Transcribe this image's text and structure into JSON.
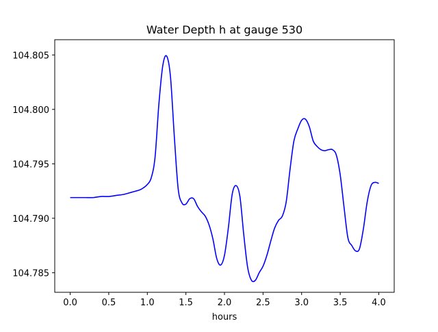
{
  "chart_data": {
    "type": "line",
    "title": "Water Depth h at gauge 530",
    "xlabel": "hours",
    "ylabel": "",
    "xlim": [
      -0.2,
      4.2
    ],
    "ylim": [
      104.7832,
      104.8064
    ],
    "grid": false,
    "xticks": [
      0.0,
      0.5,
      1.0,
      1.5,
      2.0,
      2.5,
      3.0,
      3.5,
      4.0
    ],
    "xtick_labels": [
      "0.0",
      "0.5",
      "1.0",
      "1.5",
      "2.0",
      "2.5",
      "3.0",
      "3.5",
      "4.0"
    ],
    "yticks": [
      104.785,
      104.79,
      104.795,
      104.8,
      104.805
    ],
    "ytick_labels": [
      "104.785",
      "104.790",
      "104.795",
      "104.800",
      "104.805"
    ],
    "series": [
      {
        "color": "#0000ff",
        "points": [
          [
            0.0,
            104.7919
          ],
          [
            0.1,
            104.7919
          ],
          [
            0.2,
            104.7919
          ],
          [
            0.3,
            104.7919
          ],
          [
            0.4,
            104.792
          ],
          [
            0.5,
            104.792
          ],
          [
            0.6,
            104.7921
          ],
          [
            0.7,
            104.7922
          ],
          [
            0.8,
            104.7924
          ],
          [
            0.9,
            104.7926
          ],
          [
            0.95,
            104.7928
          ],
          [
            1.0,
            104.7931
          ],
          [
            1.05,
            104.7937
          ],
          [
            1.1,
            104.7956
          ],
          [
            1.15,
            104.8005
          ],
          [
            1.2,
            104.804
          ],
          [
            1.25,
            104.8049
          ],
          [
            1.3,
            104.803
          ],
          [
            1.35,
            104.7975
          ],
          [
            1.4,
            104.7927
          ],
          [
            1.45,
            104.7914
          ],
          [
            1.5,
            104.7913
          ],
          [
            1.55,
            104.7918
          ],
          [
            1.6,
            104.7918
          ],
          [
            1.65,
            104.7911
          ],
          [
            1.7,
            104.7906
          ],
          [
            1.75,
            104.7902
          ],
          [
            1.8,
            104.7894
          ],
          [
            1.85,
            104.7881
          ],
          [
            1.9,
            104.7863
          ],
          [
            1.95,
            104.7857
          ],
          [
            2.0,
            104.7866
          ],
          [
            2.05,
            104.7891
          ],
          [
            2.1,
            104.7922
          ],
          [
            2.15,
            104.793
          ],
          [
            2.2,
            104.792
          ],
          [
            2.25,
            104.7885
          ],
          [
            2.3,
            104.7855
          ],
          [
            2.35,
            104.7843
          ],
          [
            2.4,
            104.7843
          ],
          [
            2.45,
            104.785
          ],
          [
            2.5,
            104.7856
          ],
          [
            2.55,
            104.7866
          ],
          [
            2.6,
            104.7879
          ],
          [
            2.65,
            104.7891
          ],
          [
            2.7,
            104.7898
          ],
          [
            2.75,
            104.7902
          ],
          [
            2.8,
            104.7915
          ],
          [
            2.85,
            104.7945
          ],
          [
            2.9,
            104.7971
          ],
          [
            2.95,
            104.7982
          ],
          [
            3.0,
            104.799
          ],
          [
            3.05,
            104.7991
          ],
          [
            3.1,
            104.7984
          ],
          [
            3.15,
            104.7971
          ],
          [
            3.2,
            104.7966
          ],
          [
            3.25,
            104.7963
          ],
          [
            3.3,
            104.7962
          ],
          [
            3.35,
            104.7963
          ],
          [
            3.4,
            104.7963
          ],
          [
            3.45,
            104.7958
          ],
          [
            3.5,
            104.794
          ],
          [
            3.55,
            104.791
          ],
          [
            3.6,
            104.7882
          ],
          [
            3.65,
            104.7875
          ],
          [
            3.7,
            104.787
          ],
          [
            3.75,
            104.7872
          ],
          [
            3.8,
            104.789
          ],
          [
            3.85,
            104.7915
          ],
          [
            3.9,
            104.793
          ],
          [
            3.95,
            104.7933
          ],
          [
            4.0,
            104.7932
          ]
        ]
      }
    ]
  }
}
